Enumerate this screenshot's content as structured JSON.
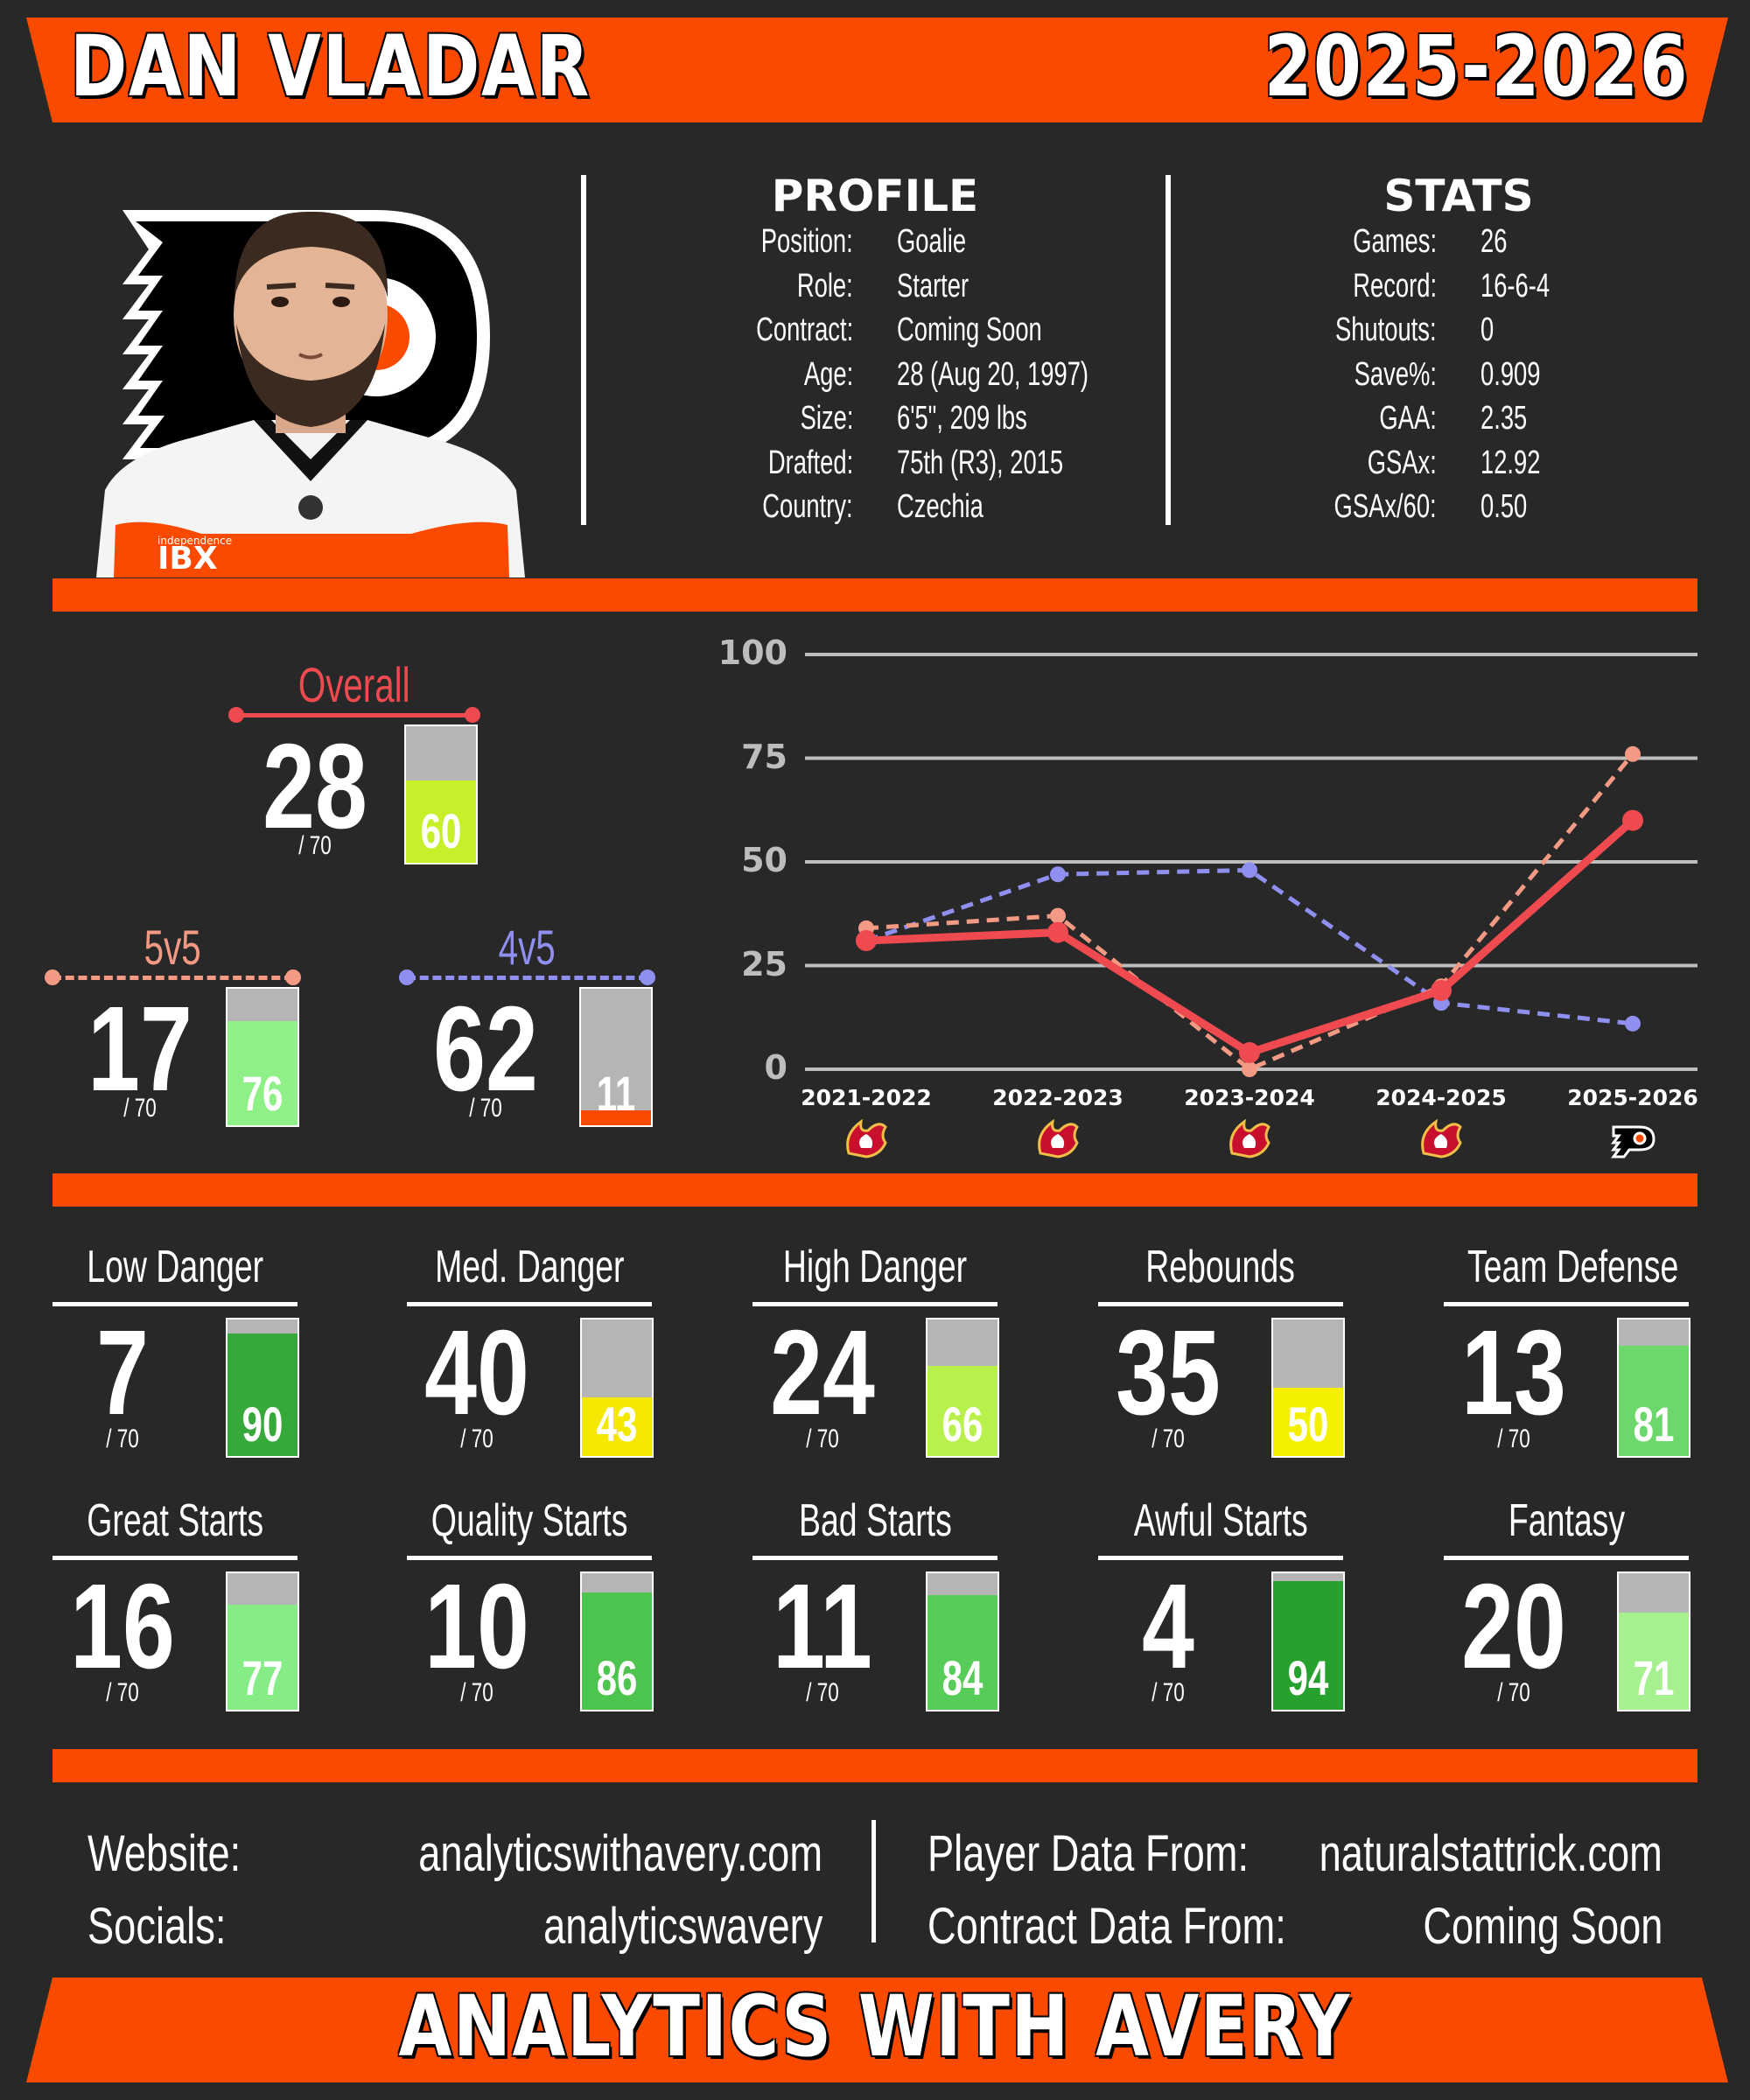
{
  "header": {
    "player_name": "DAN VLADAR",
    "season": "2025-2026"
  },
  "profile": {
    "title": "PROFILE",
    "rows": [
      {
        "label": "Position:",
        "value": "Goalie"
      },
      {
        "label": "Role:",
        "value": "Starter"
      },
      {
        "label": "Contract:",
        "value": "Coming Soon"
      },
      {
        "label": "Age:",
        "value": "28 (Aug 20, 1997)"
      },
      {
        "label": "Size:",
        "value": "6'5\", 209 lbs"
      },
      {
        "label": "Drafted:",
        "value": "75th (R3), 2015"
      },
      {
        "label": "Country:",
        "value": "Czechia"
      }
    ]
  },
  "stats": {
    "title": "STATS",
    "rows": [
      {
        "label": "Games:",
        "value": "26"
      },
      {
        "label": "Record:",
        "value": "16-6-4"
      },
      {
        "label": "Shutouts:",
        "value": "0"
      },
      {
        "label": "Save%:",
        "value": "0.909"
      },
      {
        "label": "GAA:",
        "value": "2.35"
      },
      {
        "label": "GSAx:",
        "value": "12.92"
      },
      {
        "label": "GSAx/60:",
        "value": "0.50"
      }
    ]
  },
  "ratings": {
    "overall": {
      "label": "Overall",
      "rank": "28",
      "sub": "/ 70",
      "pct": 60,
      "pct_label": "60",
      "color": "#ee4a4f",
      "fill": "#c8f02a"
    },
    "5v5": {
      "label": "5v5",
      "rank": "17",
      "sub": "/ 70",
      "pct": 76,
      "pct_label": "76",
      "color": "#f39a84",
      "fill": "#8ff088"
    },
    "4v5": {
      "label": "4v5",
      "rank": "62",
      "sub": "/ 70",
      "pct": 11,
      "pct_label": "11",
      "color": "#8f8ff0",
      "fill": "#fa4a00"
    }
  },
  "chart_data": {
    "type": "line",
    "categories": [
      "2021-2022",
      "2022-2023",
      "2023-2024",
      "2024-2025",
      "2025-2026"
    ],
    "ylim": [
      0,
      100
    ],
    "yticks": [
      "0",
      "25",
      "50",
      "75",
      "100"
    ],
    "grid": true,
    "series": [
      {
        "key": "overall",
        "values": [
          31,
          33,
          4,
          19,
          60
        ],
        "color": "#ee4a4f",
        "style": "solid"
      },
      {
        "key": "5v5",
        "values": [
          34,
          37,
          0,
          20,
          76
        ],
        "color": "#f39a84",
        "style": "dashed"
      },
      {
        "key": "4v5",
        "values": [
          31,
          47,
          48,
          16,
          11
        ],
        "color": "#8f8ff0",
        "style": "dashed"
      }
    ],
    "team_icons": [
      "flames-logo-icon",
      "flames-logo-icon",
      "flames-logo-icon",
      "flames-logo-icon",
      "flyers-logo-icon"
    ]
  },
  "metrics": [
    {
      "label": "Low Danger",
      "rank": "7",
      "sub": "/ 70",
      "pct": 90,
      "pct_label": "90",
      "fill": "#36a93a"
    },
    {
      "label": "Med. Danger",
      "rank": "40",
      "sub": "/ 70",
      "pct": 43,
      "pct_label": "43",
      "fill": "#f5e800"
    },
    {
      "label": "High Danger",
      "rank": "24",
      "sub": "/ 70",
      "pct": 66,
      "pct_label": "66",
      "fill": "#b8f04c"
    },
    {
      "label": "Rebounds",
      "rank": "35",
      "sub": "/ 70",
      "pct": 50,
      "pct_label": "50",
      "fill": "#f5f000"
    },
    {
      "label": "Team Defense",
      "rank": "13",
      "sub": "/ 70",
      "pct": 81,
      "pct_label": "81",
      "fill": "#6cd86c"
    },
    {
      "label": "Great Starts",
      "rank": "16",
      "sub": "/ 70",
      "pct": 77,
      "pct_label": "77",
      "fill": "#86ec86"
    },
    {
      "label": "Quality Starts",
      "rank": "10",
      "sub": "/ 70",
      "pct": 86,
      "pct_label": "86",
      "fill": "#4dc44d"
    },
    {
      "label": "Bad Starts",
      "rank": "11",
      "sub": "/ 70",
      "pct": 84,
      "pct_label": "84",
      "fill": "#58cc58"
    },
    {
      "label": "Awful Starts",
      "rank": "4",
      "sub": "/ 70",
      "pct": 94,
      "pct_label": "94",
      "fill": "#27a12d"
    },
    {
      "label": "Fantasy",
      "rank": "20",
      "sub": "/ 70",
      "pct": 71,
      "pct_label": "71",
      "fill": "#a6f090"
    }
  ],
  "footer": {
    "website_label": "Website:",
    "website_value": "analyticswithavery.com",
    "socials_label": "Socials:",
    "socials_value": "analyticswavery",
    "player_data_label": "Player Data From:",
    "player_data_value": "naturalstattrick.com",
    "contract_data_label": "Contract Data From:",
    "contract_data_value": "Coming Soon",
    "brand": "ANALYTICS WITH AVERY"
  },
  "colors": {
    "accent": "#fa4a00",
    "background": "#282828"
  }
}
